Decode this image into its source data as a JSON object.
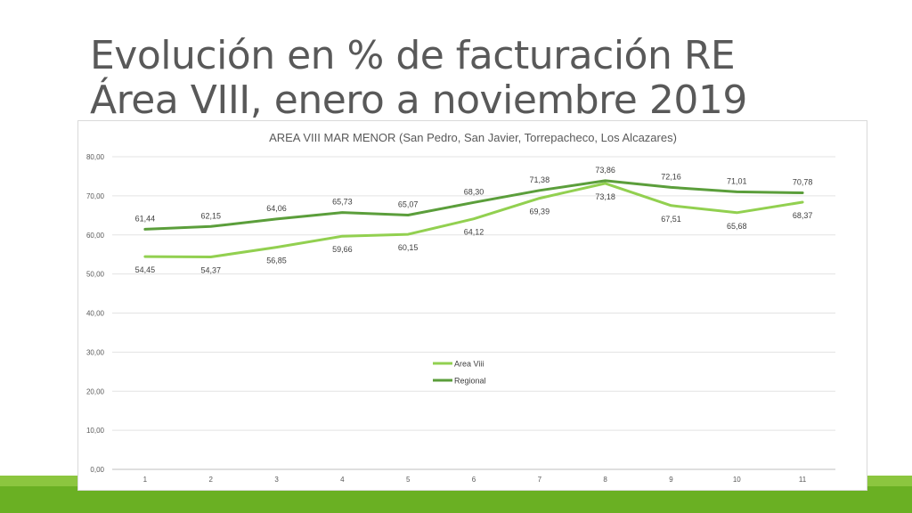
{
  "slide": {
    "title_line1": "Evolución en % de facturación RE",
    "title_line2": "Área VIII, enero a noviembre 2019"
  },
  "colors": {
    "area_viii": "#92d050",
    "regional": "#5b9e3b",
    "band_light": "#8cc63f",
    "band_dark": "#6ab023"
  },
  "chart_data": {
    "type": "line",
    "title": "AREA VIII MAR MENOR (San Pedro, San Javier, Torrepacheco, Los Alcazares)",
    "categories": [
      "1",
      "2",
      "3",
      "4",
      "5",
      "6",
      "7",
      "8",
      "9",
      "10",
      "11"
    ],
    "series": [
      {
        "name": "Area Viii",
        "values": [
          54.45,
          54.37,
          56.85,
          59.66,
          60.15,
          64.12,
          69.39,
          73.18,
          67.51,
          65.68,
          68.37
        ],
        "labels": [
          "54,45",
          "54,37",
          "56,85",
          "59,66",
          "60,15",
          "64,12",
          "69,39",
          "73,18",
          "67,51",
          "65,68",
          "68,37"
        ],
        "label_position": "below"
      },
      {
        "name": "Regional",
        "values": [
          61.44,
          62.15,
          64.06,
          65.73,
          65.07,
          68.3,
          71.38,
          73.86,
          72.16,
          71.01,
          70.78
        ],
        "labels": [
          "61,44",
          "62,15",
          "64,06",
          "65,73",
          "65,07",
          "68,30",
          "71,38",
          "73,86",
          "72,16",
          "71,01",
          "70,78"
        ],
        "label_position": "above"
      }
    ],
    "ylim": [
      0,
      80
    ],
    "yticks": [
      0,
      10,
      20,
      30,
      40,
      50,
      60,
      70,
      80
    ],
    "ytick_labels": [
      "0,00",
      "10,00",
      "20,00",
      "30,00",
      "40,00",
      "50,00",
      "60,00",
      "70,00",
      "80,00"
    ],
    "grid": true,
    "legend": "inside-center"
  }
}
